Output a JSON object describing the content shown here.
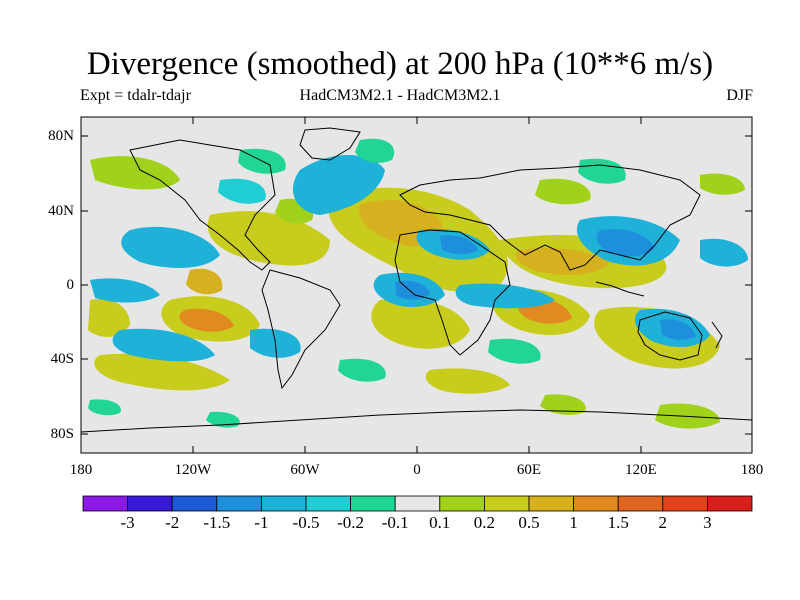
{
  "title": "Divergence (smoothed) at 200 hPa (10**6 m/s)",
  "subtitle_left": "Expt = tdalr-tdajr",
  "subtitle_center": "HadCM3M2.1 - HadCM3M2.1",
  "subtitle_right": "DJF",
  "lat_labels": [
    "80N",
    "40N",
    "0",
    "40S",
    "80S"
  ],
  "lon_labels": [
    "180",
    "120W",
    "60W",
    "0",
    "60E",
    "120E",
    "180"
  ],
  "colorbar": {
    "labels": [
      "-3",
      "-2",
      "-1.5",
      "-1",
      "-0.5",
      "-0.2",
      "-0.1",
      "0.1",
      "0.2",
      "0.5",
      "1",
      "1.5",
      "2",
      "3"
    ],
    "colors": [
      "#8a19e6",
      "#3a19d6",
      "#1f5ad6",
      "#1e8fdc",
      "#1fb2d9",
      "#1fcdd2",
      "#21d695",
      "#e6e6e6",
      "#a0d21c",
      "#c8cc1c",
      "#d6b01e",
      "#e08a1f",
      "#e0651f",
      "#e0421e",
      "#d91e1e"
    ]
  },
  "colors": {
    "land_outline": "#000000",
    "background": "#e6e6e6"
  }
}
